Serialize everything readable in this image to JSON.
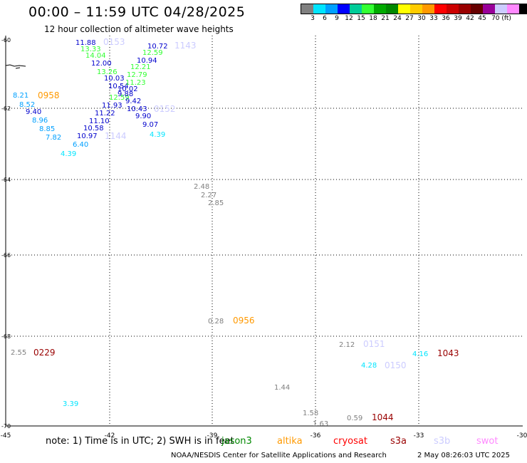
{
  "header": {
    "title": "00:00 – 11:59 UTC 04/28/2025",
    "subtitle": "12 hour collection of altimeter wave heights"
  },
  "colorbar": {
    "colors": [
      "#808080",
      "#00e5ff",
      "#00a0ff",
      "#0000ff",
      "#00cc99",
      "#33ff33",
      "#00aa00",
      "#008800",
      "#ffff00",
      "#ffcc00",
      "#ff9900",
      "#ff0000",
      "#cc0000",
      "#990000",
      "#660000",
      "#990099",
      "#ccccff",
      "#ff88ff",
      "#000000"
    ],
    "labels": [
      "3",
      "6",
      "9",
      "12",
      "15",
      "18",
      "21",
      "24",
      "27",
      "30",
      "33",
      "36",
      "39",
      "42",
      "45",
      "70 (ft)"
    ]
  },
  "axes": {
    "lon_ticks": [
      "-45",
      "-42",
      "-39",
      "-36",
      "-33",
      "-30"
    ],
    "lat_ticks": [
      "-60",
      "-62",
      "-64",
      "-66",
      "-68",
      "-70"
    ]
  },
  "tracks": [
    {
      "time": "0153",
      "color": "#ccccff",
      "points": [
        {
          "v": "11.88",
          "c": "#0000cc"
        },
        {
          "v": "13.33",
          "c": "#33ff33"
        },
        {
          "v": "14.04",
          "c": "#33ff33"
        },
        {
          "v": "12.00",
          "c": "#0000cc"
        },
        {
          "v": "13.26",
          "c": "#33ff33"
        },
        {
          "v": "10.03",
          "c": "#0000cc"
        },
        {
          "v": "10.54",
          "c": "#0000cc"
        },
        {
          "v": "12.59",
          "c": "#33ff33"
        },
        {
          "v": "11.93",
          "c": "#0000cc"
        },
        {
          "v": "11.22",
          "c": "#0000cc"
        },
        {
          "v": "11.10",
          "c": "#0000cc"
        },
        {
          "v": "10.58",
          "c": "#0000cc"
        },
        {
          "v": "10.97",
          "c": "#0000cc"
        },
        {
          "v": "6.40",
          "c": "#00a0ff"
        },
        {
          "v": "4.39",
          "c": "#00e5ff"
        }
      ]
    },
    {
      "time": "1143",
      "color": "#ccccff",
      "points": [
        {
          "v": "10.72",
          "c": "#0000cc"
        },
        {
          "v": "12.59",
          "c": "#33ff33"
        },
        {
          "v": "10.94",
          "c": "#0000cc"
        },
        {
          "v": "12.21",
          "c": "#33ff33"
        },
        {
          "v": "12.79",
          "c": "#33ff33"
        },
        {
          "v": "11.23",
          "c": "#33ff33"
        },
        {
          "v": "10.02",
          "c": "#0000cc"
        },
        {
          "v": "9.88",
          "c": "#0000cc"
        },
        {
          "v": "9.42",
          "c": "#0000cc"
        },
        {
          "v": "10.43",
          "c": "#0000cc"
        },
        {
          "v": "9.90",
          "c": "#0000cc"
        },
        {
          "v": "9.07",
          "c": "#0000cc"
        },
        {
          "v": "4.39",
          "c": "#00e5ff"
        }
      ]
    },
    {
      "time": "0958",
      "color": "#ff9900",
      "points": [
        {
          "v": "8.21",
          "c": "#00a0ff"
        },
        {
          "v": "8.52",
          "c": "#00a0ff"
        },
        {
          "v": "9.40",
          "c": "#0000cc"
        },
        {
          "v": "8.96",
          "c": "#00a0ff"
        },
        {
          "v": "8.85",
          "c": "#00a0ff"
        },
        {
          "v": "7.82",
          "c": "#00a0ff"
        }
      ]
    },
    {
      "time": "0152",
      "color": "#ccccff",
      "points": []
    },
    {
      "time": "1144",
      "color": "#ccccff",
      "points": []
    },
    {
      "time": "",
      "color": "#808080",
      "points": [
        {
          "v": "2.48",
          "c": "#808080"
        },
        {
          "v": "2.27",
          "c": "#808080"
        },
        {
          "v": "2.85",
          "c": "#808080"
        }
      ]
    },
    {
      "time": "0956",
      "color": "#ff9900",
      "points": [
        {
          "v": "0.28",
          "c": "#808080"
        }
      ]
    },
    {
      "time": "0229",
      "color": "#990000",
      "points": [
        {
          "v": "2.55",
          "c": "#808080"
        }
      ]
    },
    {
      "time": "0151",
      "color": "#ccccff",
      "points": [
        {
          "v": "2.12",
          "c": "#808080"
        }
      ]
    },
    {
      "time": "0150",
      "color": "#ccccff",
      "points": [
        {
          "v": "4.28",
          "c": "#00e5ff"
        }
      ]
    },
    {
      "time": "1043",
      "color": "#990000",
      "points": [
        {
          "v": "4.16",
          "c": "#00e5ff"
        }
      ]
    },
    {
      "time": "",
      "color": "#00e5ff",
      "points": [
        {
          "v": "3.39",
          "c": "#00e5ff"
        }
      ]
    },
    {
      "time": "",
      "color": "#808080",
      "points": [
        {
          "v": "1.44",
          "c": "#808080"
        }
      ]
    },
    {
      "time": "",
      "color": "#808080",
      "points": [
        {
          "v": "1.58",
          "c": "#808080"
        },
        {
          "v": "1.63",
          "c": "#808080"
        }
      ]
    },
    {
      "time": "1044",
      "color": "#990000",
      "points": [
        {
          "v": "0.59",
          "c": "#808080"
        }
      ]
    }
  ],
  "note": {
    "text": "note:  1) Time is in UTC;  2) SWH is in feet",
    "satellites": [
      {
        "name": "jason3",
        "color": "#008800"
      },
      {
        "name": "altika",
        "color": "#ff9900"
      },
      {
        "name": "cryosat",
        "color": "#ff0000"
      },
      {
        "name": "s3a",
        "color": "#990000"
      },
      {
        "name": "s3b",
        "color": "#ccccff"
      },
      {
        "name": "swot",
        "color": "#ff88ff"
      }
    ]
  },
  "footer": {
    "credit": "NOAA/NESDIS Center for Satellite Applications and Research",
    "timestamp": "2 May 08:26:03 UTC 2025"
  }
}
